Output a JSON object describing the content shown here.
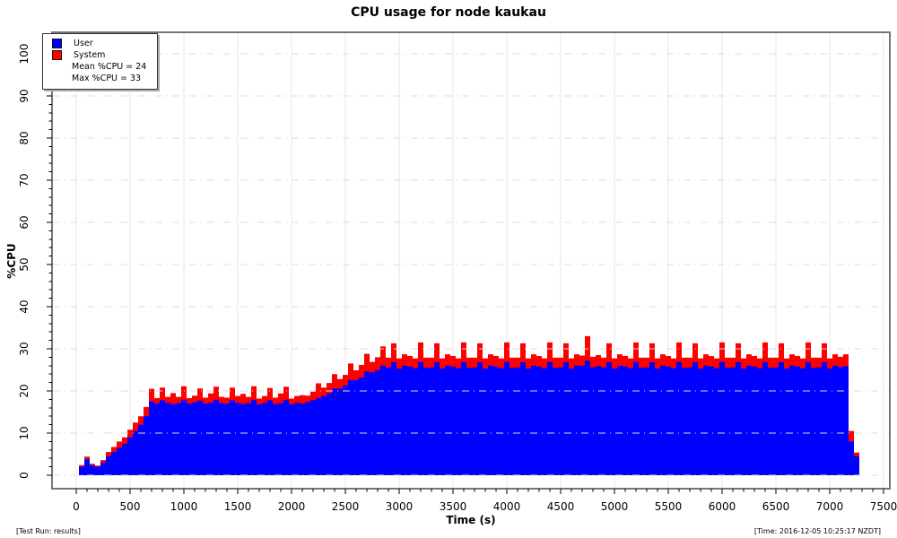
{
  "title": "CPU usage for node kaukau",
  "legend": {
    "user_label": "User",
    "system_label": "System",
    "mean_label": "Mean %CPU = 24",
    "max_label": "Max %CPU = 33"
  },
  "footer": {
    "left": "[Test Run: results]",
    "right": "[Time: 2016-12-05 10:25:17 NZDT]"
  },
  "chart_data": {
    "type": "area",
    "stacked": true,
    "title": "CPU usage for node kaukau",
    "xlabel": "Time (s)",
    "ylabel": "%CPU",
    "xlim": [
      0,
      7500
    ],
    "ylim": [
      0,
      100
    ],
    "xticks": [
      0,
      500,
      1000,
      1500,
      2000,
      2500,
      3000,
      3500,
      4000,
      4500,
      5000,
      5500,
      6000,
      6500,
      7000,
      7500
    ],
    "xtick_minor_step": 100,
    "yticks": [
      0,
      10,
      20,
      30,
      40,
      50,
      60,
      70,
      80,
      90,
      100
    ],
    "ytick_minor_step": 2,
    "grid": {
      "vertical": "solid",
      "horizontal": "dash-dot"
    },
    "legend_position": "top-left",
    "mean_cpu": 24,
    "max_cpu": 33,
    "colors": {
      "user": "#0000ff",
      "system": "#ff0000"
    },
    "x": [
      50,
      100,
      150,
      200,
      250,
      300,
      350,
      400,
      450,
      500,
      550,
      600,
      650,
      700,
      750,
      800,
      850,
      900,
      950,
      1000,
      1050,
      1100,
      1150,
      1200,
      1250,
      1300,
      1350,
      1400,
      1450,
      1500,
      1550,
      1600,
      1650,
      1700,
      1750,
      1800,
      1850,
      1900,
      1950,
      2000,
      2050,
      2100,
      2150,
      2200,
      2250,
      2300,
      2350,
      2400,
      2450,
      2500,
      2550,
      2600,
      2650,
      2700,
      2750,
      2800,
      2850,
      2900,
      2950,
      3000,
      3050,
      3100,
      3150,
      3200,
      3250,
      3300,
      3350,
      3400,
      3450,
      3500,
      3550,
      3600,
      3650,
      3700,
      3750,
      3800,
      3850,
      3900,
      3950,
      4000,
      4050,
      4100,
      4150,
      4200,
      4250,
      4300,
      4350,
      4400,
      4450,
      4500,
      4550,
      4600,
      4650,
      4700,
      4750,
      4800,
      4850,
      4900,
      4950,
      5000,
      5050,
      5100,
      5150,
      5200,
      5250,
      5300,
      5350,
      5400,
      5450,
      5500,
      5550,
      5600,
      5650,
      5700,
      5750,
      5800,
      5850,
      5900,
      5950,
      6000,
      6050,
      6100,
      6150,
      6200,
      6250,
      6300,
      6350,
      6400,
      6450,
      6500,
      6550,
      6600,
      6650,
      6700,
      6750,
      6800,
      6850,
      6900,
      6950,
      7000,
      7050,
      7100,
      7150,
      7200,
      7250
    ],
    "series": [
      {
        "name": "User",
        "values": [
          2,
          3.8,
          2.3,
          2,
          3,
          4.5,
          5.5,
          6.5,
          7.5,
          9,
          10.5,
          12,
          14,
          17.5,
          17,
          17.8,
          17.2,
          16.9,
          17.1,
          17.9,
          17,
          17.3,
          17.7,
          17,
          17.2,
          17.9,
          17.1,
          17,
          17.8,
          17.2,
          16.9,
          17.1,
          17.9,
          16.8,
          17.2,
          17.8,
          16.9,
          17.1,
          17.9,
          16.8,
          17.2,
          17,
          17.4,
          17.8,
          18.3,
          18.8,
          19.4,
          20.6,
          20.6,
          21.3,
          22.6,
          22.6,
          23.2,
          24.6,
          24.4,
          25,
          26,
          25.6,
          26.8,
          25.3,
          26,
          25.8,
          25.4,
          26.9,
          25.5,
          25.6,
          26.8,
          25.3,
          26,
          25.8,
          25.4,
          26.9,
          25.5,
          25.6,
          26.8,
          25.3,
          26,
          25.8,
          25.4,
          26.9,
          25.5,
          25.6,
          26.8,
          25.3,
          26,
          25.8,
          25.4,
          26.9,
          25.5,
          25.6,
          26.8,
          25.3,
          26,
          26,
          27.2,
          25.6,
          25.9,
          25.6,
          26.8,
          25.3,
          26,
          25.8,
          25.4,
          26.9,
          25.5,
          25.6,
          26.8,
          25.3,
          26,
          25.8,
          25.4,
          26.9,
          25.5,
          25.6,
          26.8,
          25.3,
          26,
          25.8,
          25.4,
          26.9,
          25.5,
          25.6,
          26.8,
          25.3,
          26,
          25.8,
          25.4,
          26.9,
          25.5,
          25.6,
          26.8,
          25.3,
          26,
          25.8,
          25.4,
          26.9,
          25.5,
          25.6,
          26.8,
          25.3,
          26,
          25.7,
          25.9,
          8,
          4.5
        ]
      },
      {
        "name": "System",
        "values": [
          0.4,
          0.6,
          0.4,
          0.3,
          0.6,
          1,
          1.2,
          1.5,
          1.5,
          1.8,
          2,
          2,
          2.2,
          3,
          1.3,
          3,
          1.4,
          2.6,
          1.5,
          3.2,
          1.3,
          1.6,
          2.9,
          1.4,
          2.2,
          3.1,
          1.5,
          1.4,
          3,
          1.6,
          2.4,
          1.5,
          3.2,
          1.4,
          1.6,
          2.9,
          1.5,
          2.3,
          3.1,
          1.4,
          1.6,
          2,
          1.5,
          2,
          3.5,
          2,
          2.5,
          3.4,
          2.2,
          2.5,
          3.9,
          2.3,
          3,
          4.2,
          2.5,
          3,
          4.6,
          2.3,
          4.5,
          2.4,
          2.7,
          2.5,
          2.3,
          4.6,
          2.4,
          2.3,
          4.5,
          2.4,
          2.7,
          2.5,
          2.3,
          4.6,
          2.4,
          2.3,
          4.5,
          2.4,
          2.7,
          2.5,
          2.3,
          4.6,
          2.4,
          2.3,
          4.5,
          2.4,
          2.7,
          2.5,
          2.3,
          4.6,
          2.4,
          2.3,
          4.5,
          2.4,
          2.7,
          2.4,
          5.8,
          2.5,
          2.6,
          2.3,
          4.5,
          2.4,
          2.7,
          2.5,
          2.3,
          4.6,
          2.4,
          2.3,
          4.5,
          2.4,
          2.7,
          2.5,
          2.3,
          4.6,
          2.4,
          2.3,
          4.5,
          2.4,
          2.7,
          2.5,
          2.3,
          4.6,
          2.4,
          2.3,
          4.5,
          2.4,
          2.7,
          2.5,
          2.3,
          4.6,
          2.4,
          2.3,
          4.5,
          2.4,
          2.7,
          2.5,
          2.3,
          4.6,
          2.4,
          2.3,
          4.5,
          2.4,
          2.7,
          2.4,
          2.8,
          2.5,
          0.9
        ]
      }
    ]
  }
}
